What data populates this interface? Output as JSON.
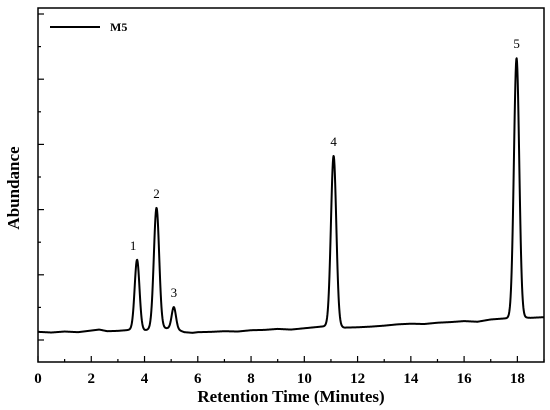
{
  "chart_data": {
    "type": "line",
    "xlabel": "Retention Time (Minutes)",
    "ylabel": "Abundance",
    "xlim": [
      0,
      19
    ],
    "ylim": [
      0,
      100
    ],
    "x_ticks": [
      "0",
      "2",
      "4",
      "6",
      "8",
      "10",
      "12",
      "14",
      "16",
      "18"
    ],
    "y_ticks_labeled": false,
    "legend": {
      "placement": "top-left"
    },
    "series": [
      {
        "name": "M5",
        "color": "#000000",
        "baseline": [
          [
            0.0,
            2.5
          ],
          [
            0.5,
            2.3
          ],
          [
            1.0,
            2.6
          ],
          [
            1.5,
            2.4
          ],
          [
            2.0,
            2.9
          ],
          [
            2.3,
            3.2
          ],
          [
            2.6,
            2.7
          ],
          [
            3.0,
            2.8
          ],
          [
            3.3,
            3.0
          ],
          [
            3.5,
            3.2
          ],
          [
            4.0,
            3.0
          ],
          [
            4.5,
            3.6
          ],
          [
            5.1,
            3.6
          ],
          [
            5.5,
            2.4
          ],
          [
            5.8,
            2.2
          ],
          [
            6.0,
            2.4
          ],
          [
            6.5,
            2.5
          ],
          [
            7.0,
            2.7
          ],
          [
            7.5,
            2.6
          ],
          [
            8.0,
            3.0
          ],
          [
            8.5,
            3.1
          ],
          [
            9.0,
            3.4
          ],
          [
            9.5,
            3.2
          ],
          [
            10.0,
            3.6
          ],
          [
            10.5,
            4.0
          ],
          [
            11.1,
            4.5
          ],
          [
            11.5,
            3.8
          ],
          [
            12.0,
            3.9
          ],
          [
            12.5,
            4.1
          ],
          [
            13.0,
            4.4
          ],
          [
            13.5,
            4.8
          ],
          [
            14.0,
            5.0
          ],
          [
            14.5,
            4.9
          ],
          [
            15.0,
            5.3
          ],
          [
            15.5,
            5.5
          ],
          [
            16.0,
            5.8
          ],
          [
            16.5,
            5.6
          ],
          [
            17.0,
            6.3
          ],
          [
            17.5,
            6.6
          ],
          [
            18.0,
            7.0
          ],
          [
            18.5,
            6.8
          ],
          [
            19.0,
            7.0
          ]
        ],
        "peaks": [
          {
            "label": "1",
            "rt": 3.72,
            "height": 21.5,
            "width": 0.09
          },
          {
            "label": "2",
            "rt": 4.45,
            "height": 37.0,
            "width": 0.1
          },
          {
            "label": "3",
            "rt": 5.1,
            "height": 6.5,
            "width": 0.08
          },
          {
            "label": "4",
            "rt": 11.1,
            "height": 52.0,
            "width": 0.1
          },
          {
            "label": "5",
            "rt": 17.97,
            "height": 79.5,
            "width": 0.1
          }
        ]
      }
    ]
  }
}
